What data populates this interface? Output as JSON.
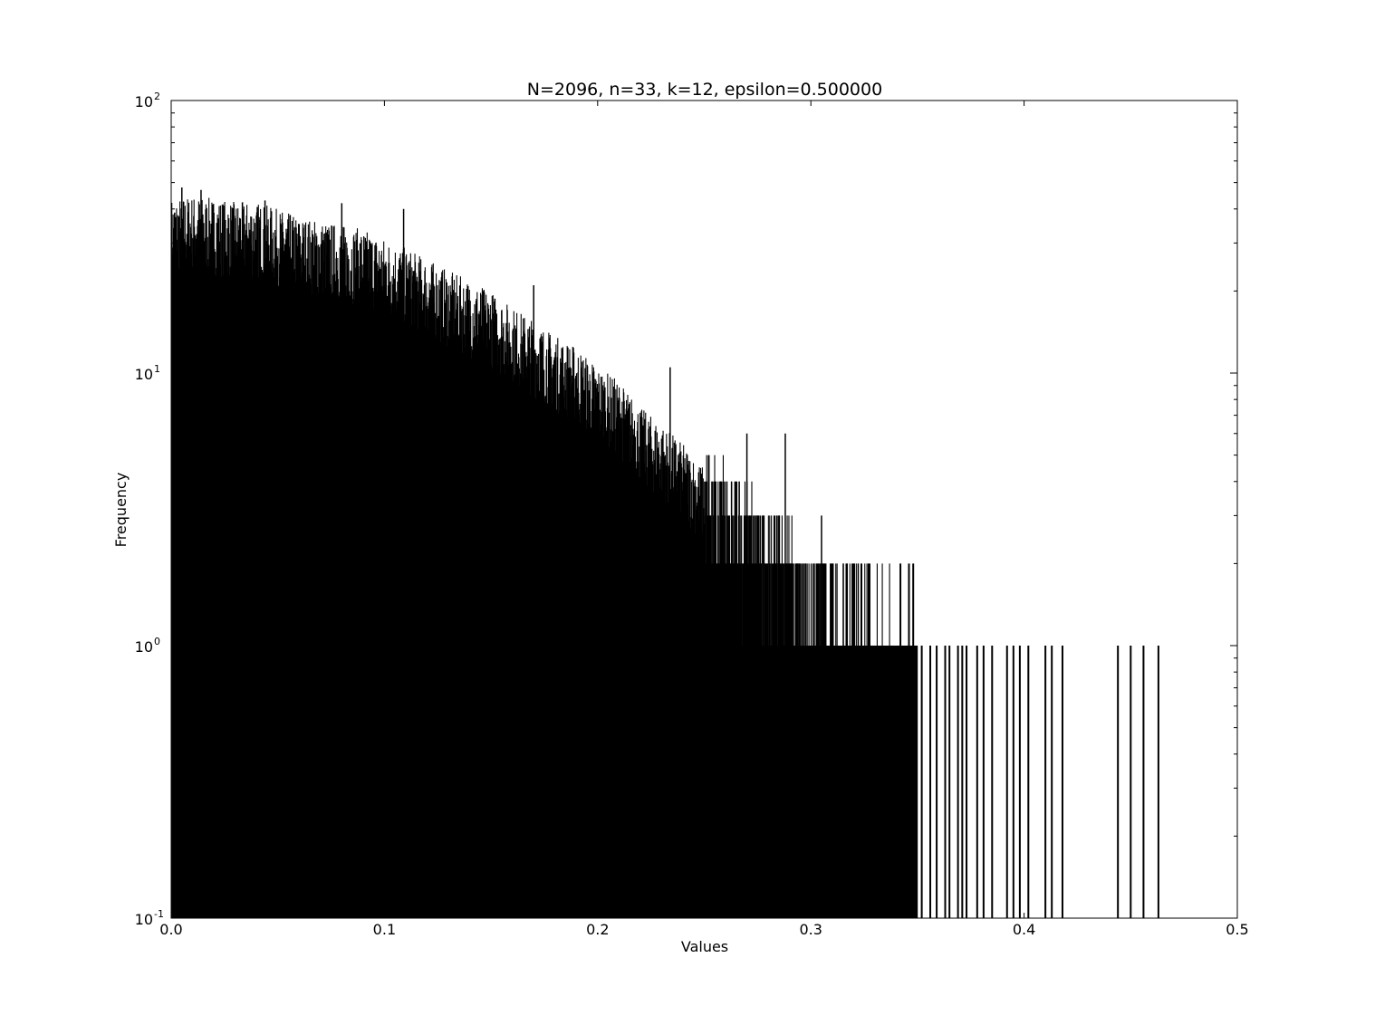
{
  "chart_data": {
    "type": "bar",
    "title": "N=2096, n=33, k=12, epsilon=0.500000",
    "xlabel": "Values",
    "ylabel": "Frequency",
    "xlim": [
      0.0,
      0.5
    ],
    "ylim": [
      0.1,
      100
    ],
    "yscale": "log",
    "bar_color": "#000000",
    "x_ticks": [
      {
        "value": 0.0,
        "label": "0.0"
      },
      {
        "value": 0.1,
        "label": "0.1"
      },
      {
        "value": 0.2,
        "label": "0.2"
      },
      {
        "value": 0.3,
        "label": "0.3"
      },
      {
        "value": 0.4,
        "label": "0.4"
      },
      {
        "value": 0.5,
        "label": "0.5"
      }
    ],
    "y_ticks": [
      {
        "value": 0.1,
        "base": "10",
        "exp": "-1"
      },
      {
        "value": 1,
        "base": "10",
        "exp": "0"
      },
      {
        "value": 10,
        "base": "10",
        "exp": "1"
      },
      {
        "value": 100,
        "base": "10",
        "exp": "2"
      }
    ],
    "envelope": [
      [
        0.0,
        35
      ],
      [
        0.01,
        36
      ],
      [
        0.02,
        35
      ],
      [
        0.03,
        34
      ],
      [
        0.04,
        34
      ],
      [
        0.05,
        32
      ],
      [
        0.06,
        30
      ],
      [
        0.07,
        29
      ],
      [
        0.08,
        28
      ],
      [
        0.09,
        27
      ],
      [
        0.1,
        25
      ],
      [
        0.11,
        23
      ],
      [
        0.12,
        21
      ],
      [
        0.13,
        19
      ],
      [
        0.14,
        17.5
      ],
      [
        0.15,
        16
      ],
      [
        0.16,
        14
      ],
      [
        0.17,
        12.5
      ],
      [
        0.18,
        11
      ],
      [
        0.19,
        10
      ],
      [
        0.2,
        8.5
      ],
      [
        0.21,
        7.5
      ],
      [
        0.22,
        6
      ],
      [
        0.23,
        5.2
      ],
      [
        0.24,
        4.4
      ],
      [
        0.25,
        3.6
      ],
      [
        0.26,
        3
      ],
      [
        0.27,
        2.6
      ],
      [
        0.28,
        2.2
      ],
      [
        0.29,
        1.8
      ],
      [
        0.3,
        1.6
      ],
      [
        0.31,
        1.4
      ],
      [
        0.32,
        1.2
      ],
      [
        0.33,
        1.1
      ],
      [
        0.34,
        1.0
      ],
      [
        0.35,
        1.0
      ]
    ],
    "peaks": [
      [
        0.005,
        48
      ],
      [
        0.014,
        47
      ],
      [
        0.044,
        43
      ],
      [
        0.08,
        42
      ],
      [
        0.109,
        40
      ],
      [
        0.146,
        20
      ],
      [
        0.17,
        21
      ],
      [
        0.234,
        10.5
      ],
      [
        0.27,
        6.0
      ],
      [
        0.288,
        6.0
      ],
      [
        0.305,
        3.0
      ]
    ],
    "isolated_bars": [
      [
        0.342,
        2
      ],
      [
        0.346,
        2
      ],
      [
        0.348,
        2
      ],
      [
        0.352,
        1
      ],
      [
        0.356,
        1
      ],
      [
        0.359,
        1
      ],
      [
        0.363,
        1
      ],
      [
        0.365,
        1
      ],
      [
        0.369,
        1
      ],
      [
        0.371,
        1
      ],
      [
        0.373,
        1
      ],
      [
        0.378,
        1
      ],
      [
        0.381,
        1
      ],
      [
        0.385,
        1
      ],
      [
        0.392,
        1
      ],
      [
        0.395,
        1
      ],
      [
        0.398,
        1
      ],
      [
        0.402,
        1
      ],
      [
        0.41,
        1
      ],
      [
        0.413,
        1
      ],
      [
        0.418,
        1
      ],
      [
        0.444,
        1
      ],
      [
        0.45,
        1
      ],
      [
        0.456,
        1
      ],
      [
        0.463,
        1
      ]
    ]
  }
}
